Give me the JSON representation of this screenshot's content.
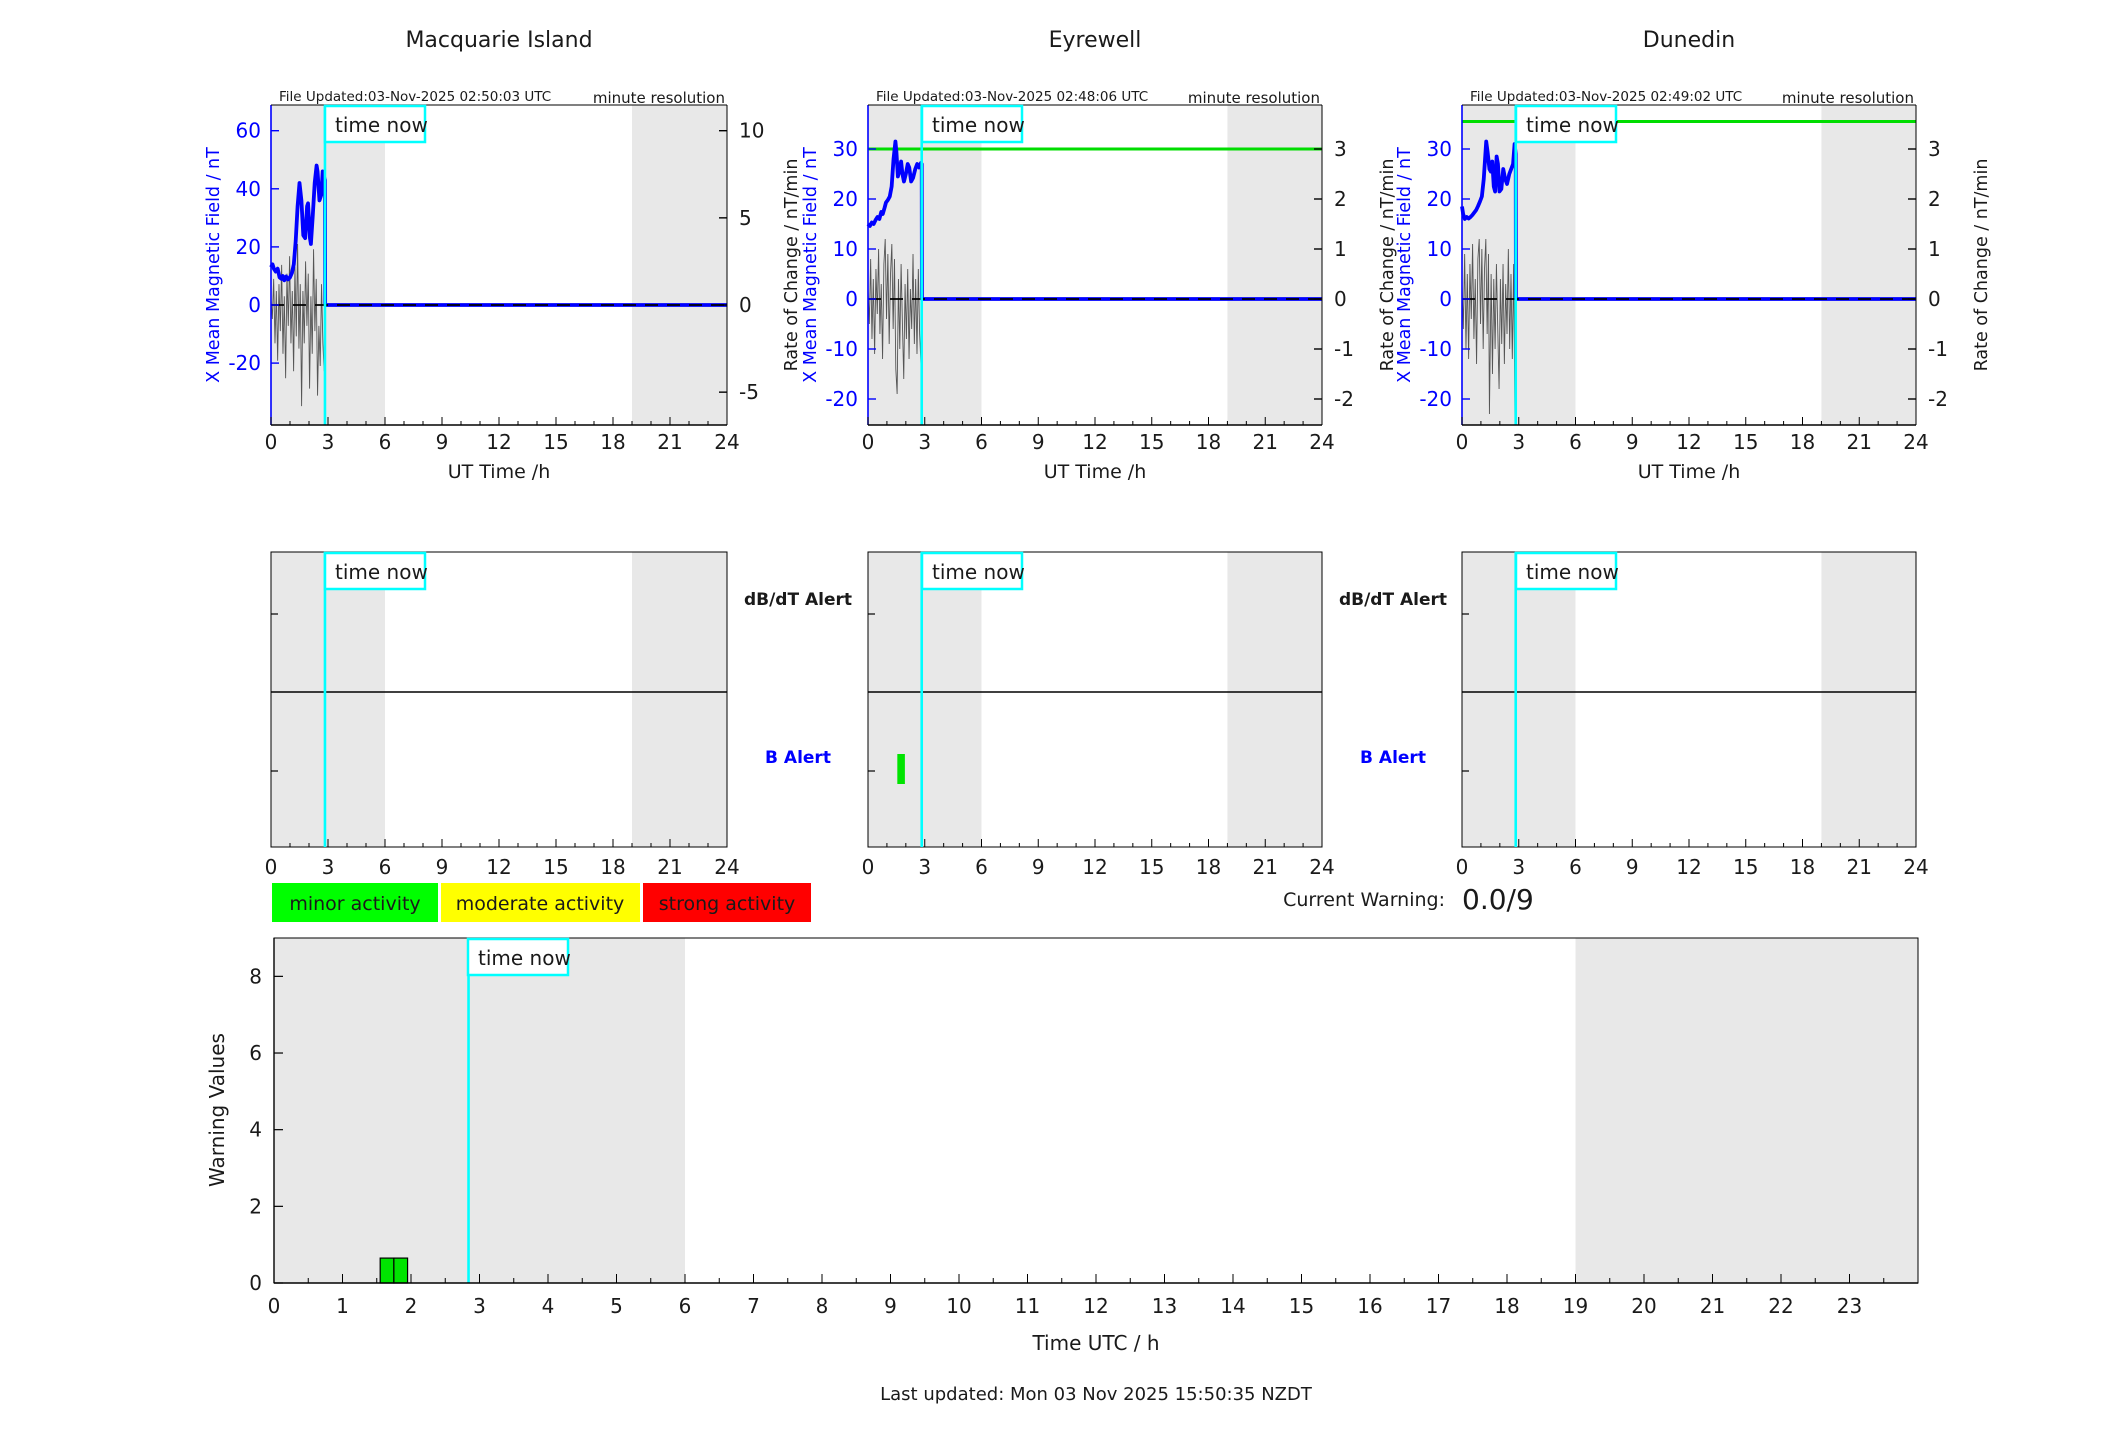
{
  "colors": {
    "field_line": "#0000ff",
    "rate_line": "#555555",
    "now_line": "#00ffff",
    "band": "#e8e8e8",
    "threshold_green": "#00dd00",
    "bar_green": "#00e400",
    "axis_blue": "#0000ff"
  },
  "time_now_hours": 2.84,
  "time_now_label": "time now",
  "chart_data": [
    {
      "type": "line",
      "id": "macquarie-island",
      "title": "Macquarie Island",
      "file_updated": "File Updated:03-Nov-2025 02:50:03 UTC",
      "resolution": "minute resolution",
      "left_ylabel": "X Mean Magnetic Field / nT",
      "right_ylabel": "Rate of Change / nT/min",
      "xlabel": "UT Time /h",
      "xticks": [
        0,
        3,
        6,
        9,
        12,
        15,
        18,
        21,
        24
      ],
      "left_ticks": [
        60,
        40,
        20,
        0,
        -20
      ],
      "right_ticks": [
        10,
        5,
        0,
        -5
      ],
      "xlim": [
        0,
        24
      ],
      "green_rate_threshold": null,
      "shaded_hours": [
        [
          0,
          6
        ],
        [
          19,
          24
        ]
      ],
      "field_series": [
        [
          0,
          13
        ],
        [
          0.08,
          14
        ],
        [
          0.15,
          12.5
        ],
        [
          0.25,
          11.5
        ],
        [
          0.35,
          12.5
        ],
        [
          0.45,
          9.5
        ],
        [
          0.55,
          9
        ],
        [
          0.62,
          10
        ],
        [
          0.7,
          8.5
        ],
        [
          0.8,
          9.8
        ],
        [
          0.9,
          8.8
        ],
        [
          1.0,
          9.5
        ],
        [
          1.1,
          11
        ],
        [
          1.2,
          14
        ],
        [
          1.3,
          22
        ],
        [
          1.4,
          34
        ],
        [
          1.5,
          42
        ],
        [
          1.6,
          36
        ],
        [
          1.7,
          24
        ],
        [
          1.8,
          23
        ],
        [
          1.9,
          34
        ],
        [
          1.95,
          35
        ],
        [
          2.05,
          23
        ],
        [
          2.1,
          21
        ],
        [
          2.2,
          31
        ],
        [
          2.3,
          42
        ],
        [
          2.4,
          48
        ],
        [
          2.45,
          46
        ],
        [
          2.55,
          36
        ],
        [
          2.65,
          38
        ],
        [
          2.72,
          46
        ],
        [
          2.8,
          44
        ],
        [
          2.84,
          43
        ],
        [
          2.85,
          0
        ],
        [
          24,
          0
        ]
      ],
      "rate_series": [
        [
          0,
          0.3
        ],
        [
          0.07,
          -0.8
        ],
        [
          0.14,
          1.5
        ],
        [
          0.21,
          -2.2
        ],
        [
          0.28,
          0.8
        ],
        [
          0.35,
          -3.2
        ],
        [
          0.42,
          1.2
        ],
        [
          0.49,
          -1.5
        ],
        [
          0.56,
          2.3
        ],
        [
          0.63,
          -2.8
        ],
        [
          0.7,
          0.5
        ],
        [
          0.77,
          -4.2
        ],
        [
          0.84,
          1.8
        ],
        [
          0.91,
          -1.2
        ],
        [
          0.98,
          2.8
        ],
        [
          1.05,
          -2.2
        ],
        [
          1.12,
          0.8
        ],
        [
          1.19,
          -3.8
        ],
        [
          1.26,
          2.2
        ],
        [
          1.33,
          -1.8
        ],
        [
          1.4,
          3.5
        ],
        [
          1.47,
          -2.5
        ],
        [
          1.54,
          1.2
        ],
        [
          1.61,
          -5.8
        ],
        [
          1.68,
          0.8
        ],
        [
          1.75,
          -2.2
        ],
        [
          1.82,
          2.5
        ],
        [
          1.89,
          -1.2
        ],
        [
          1.96,
          1.8
        ],
        [
          2.03,
          -4.8
        ],
        [
          2.1,
          0.5
        ],
        [
          2.17,
          -2.8
        ],
        [
          2.24,
          3.2
        ],
        [
          2.31,
          -1.5
        ],
        [
          2.38,
          1.5
        ],
        [
          2.45,
          -5.2
        ],
        [
          2.52,
          -1.2
        ],
        [
          2.59,
          -3.5
        ],
        [
          2.66,
          1.2
        ],
        [
          2.73,
          -2.2
        ],
        [
          2.8,
          -3.8
        ],
        [
          2.84,
          -1.5
        ]
      ],
      "alert_bars": []
    },
    {
      "type": "line",
      "id": "eyrewell",
      "title": "Eyrewell",
      "file_updated": "File Updated:03-Nov-2025 02:48:06 UTC",
      "resolution": "minute resolution",
      "left_ylabel": "X Mean Magnetic Field / nT",
      "right_ylabel": "Rate of Change / nT/min",
      "xlabel": "UT Time /h",
      "xticks": [
        0,
        3,
        6,
        9,
        12,
        15,
        18,
        21,
        24
      ],
      "left_ticks": [
        30,
        20,
        10,
        0,
        -10,
        -20
      ],
      "right_ticks": [
        3,
        2,
        1,
        0,
        -1,
        -2
      ],
      "xlim": [
        0,
        24
      ],
      "green_rate_threshold": 3.0,
      "shaded_hours": [
        [
          0,
          6
        ],
        [
          19,
          24
        ]
      ],
      "field_series": [
        [
          0,
          15
        ],
        [
          0.1,
          14.6
        ],
        [
          0.2,
          15.3
        ],
        [
          0.3,
          15
        ],
        [
          0.4,
          15.8
        ],
        [
          0.5,
          16.4
        ],
        [
          0.6,
          16
        ],
        [
          0.7,
          17.4
        ],
        [
          0.78,
          17
        ],
        [
          0.88,
          18.3
        ],
        [
          0.95,
          19.3
        ],
        [
          1.05,
          19.8
        ],
        [
          1.15,
          20.5
        ],
        [
          1.25,
          22.5
        ],
        [
          1.35,
          28
        ],
        [
          1.45,
          31.5
        ],
        [
          1.5,
          29.5
        ],
        [
          1.58,
          24.5
        ],
        [
          1.68,
          26
        ],
        [
          1.75,
          27.5
        ],
        [
          1.82,
          25
        ],
        [
          1.9,
          23.5
        ],
        [
          2.0,
          25
        ],
        [
          2.1,
          27
        ],
        [
          2.18,
          26.3
        ],
        [
          2.28,
          23.5
        ],
        [
          2.38,
          24.2
        ],
        [
          2.5,
          26
        ],
        [
          2.6,
          27
        ],
        [
          2.7,
          26.3
        ],
        [
          2.8,
          27.2
        ],
        [
          2.84,
          27
        ],
        [
          2.85,
          0
        ],
        [
          24,
          0
        ]
      ],
      "rate_series": [
        [
          0,
          0.2
        ],
        [
          0.07,
          -0.5
        ],
        [
          0.14,
          0.8
        ],
        [
          0.21,
          -0.8
        ],
        [
          0.28,
          0.4
        ],
        [
          0.35,
          -1.1
        ],
        [
          0.42,
          0.6
        ],
        [
          0.49,
          -0.3
        ],
        [
          0.56,
          1.0
        ],
        [
          0.63,
          -0.7
        ],
        [
          0.7,
          0.3
        ],
        [
          0.77,
          -1.2
        ],
        [
          0.84,
          0.7
        ],
        [
          0.91,
          1.2
        ],
        [
          0.98,
          -0.4
        ],
        [
          1.05,
          0.9
        ],
        [
          1.12,
          -0.9
        ],
        [
          1.19,
          0.5
        ],
        [
          1.26,
          1.1
        ],
        [
          1.33,
          -0.6
        ],
        [
          1.4,
          0.8
        ],
        [
          1.47,
          -1.4
        ],
        [
          1.54,
          -1.9
        ],
        [
          1.61,
          0.4
        ],
        [
          1.68,
          -1.0
        ],
        [
          1.75,
          0.7
        ],
        [
          1.82,
          -0.5
        ],
        [
          1.89,
          -1.6
        ],
        [
          1.96,
          0.3
        ],
        [
          2.03,
          -0.8
        ],
        [
          2.1,
          0.6
        ],
        [
          2.17,
          -1.2
        ],
        [
          2.24,
          0.2
        ],
        [
          2.31,
          -0.6
        ],
        [
          2.38,
          0.9
        ],
        [
          2.45,
          -0.9
        ],
        [
          2.52,
          0.4
        ],
        [
          2.59,
          -1.1
        ],
        [
          2.66,
          0.6
        ],
        [
          2.73,
          -0.7
        ],
        [
          2.8,
          -1.3
        ],
        [
          2.84,
          -0.5
        ]
      ],
      "alert_bars": [
        {
          "start": 1.55,
          "end": 1.95,
          "row": "B"
        }
      ]
    },
    {
      "type": "line",
      "id": "dunedin",
      "title": "Dunedin",
      "file_updated": "File Updated:03-Nov-2025 02:49:02 UTC",
      "resolution": "minute resolution",
      "left_ylabel": "X Mean Magnetic Field / nT",
      "right_ylabel": "Rate of Change / nT/min",
      "xlabel": "UT Time /h",
      "xticks": [
        0,
        3,
        6,
        9,
        12,
        15,
        18,
        21,
        24
      ],
      "left_ticks": [
        30,
        20,
        10,
        0,
        -10,
        -20
      ],
      "right_ticks": [
        3,
        2,
        1,
        0,
        -1,
        -2
      ],
      "xlim": [
        0,
        24
      ],
      "green_rate_threshold": 3.55,
      "shaded_hours": [
        [
          0,
          6
        ],
        [
          19,
          24
        ]
      ],
      "field_series": [
        [
          0,
          18.5
        ],
        [
          0.06,
          17
        ],
        [
          0.15,
          16
        ],
        [
          0.25,
          16.4
        ],
        [
          0.35,
          16.1
        ],
        [
          0.45,
          16.4
        ],
        [
          0.55,
          16.8
        ],
        [
          0.65,
          17.3
        ],
        [
          0.75,
          17.8
        ],
        [
          0.85,
          18.6
        ],
        [
          0.95,
          19.5
        ],
        [
          1.05,
          20.5
        ],
        [
          1.15,
          24
        ],
        [
          1.28,
          31.5
        ],
        [
          1.35,
          29.5
        ],
        [
          1.45,
          26
        ],
        [
          1.52,
          25.5
        ],
        [
          1.6,
          27.5
        ],
        [
          1.68,
          22.5
        ],
        [
          1.75,
          21.5
        ],
        [
          1.83,
          28.5
        ],
        [
          1.9,
          27
        ],
        [
          1.98,
          21.5
        ],
        [
          2.08,
          22
        ],
        [
          2.18,
          26
        ],
        [
          2.28,
          24
        ],
        [
          2.38,
          23
        ],
        [
          2.5,
          25
        ],
        [
          2.6,
          26
        ],
        [
          2.7,
          27
        ],
        [
          2.78,
          31
        ],
        [
          2.84,
          29
        ],
        [
          2.85,
          0
        ],
        [
          24,
          0
        ]
      ],
      "rate_series": [
        [
          0,
          0.3
        ],
        [
          0.07,
          -0.6
        ],
        [
          0.14,
          0.9
        ],
        [
          0.21,
          -1.0
        ],
        [
          0.28,
          0.5
        ],
        [
          0.35,
          -1.2
        ],
        [
          0.42,
          0.7
        ],
        [
          0.49,
          -0.4
        ],
        [
          0.56,
          1.1
        ],
        [
          0.63,
          -0.8
        ],
        [
          0.7,
          0.4
        ],
        [
          0.77,
          -1.3
        ],
        [
          0.84,
          0.8
        ],
        [
          0.91,
          1.2
        ],
        [
          0.98,
          -0.5
        ],
        [
          1.05,
          1.0
        ],
        [
          1.12,
          -1.0
        ],
        [
          1.19,
          0.6
        ],
        [
          1.26,
          1.2
        ],
        [
          1.33,
          -0.7
        ],
        [
          1.4,
          0.9
        ],
        [
          1.45,
          -2.3
        ],
        [
          1.54,
          0.5
        ],
        [
          1.61,
          -1.5
        ],
        [
          1.68,
          0.4
        ],
        [
          1.75,
          -1.0
        ],
        [
          1.82,
          0.7
        ],
        [
          1.89,
          -0.6
        ],
        [
          1.96,
          -1.8
        ],
        [
          2.03,
          0.4
        ],
        [
          2.1,
          -0.9
        ],
        [
          2.17,
          0.7
        ],
        [
          2.24,
          -1.3
        ],
        [
          2.31,
          0.3
        ],
        [
          2.38,
          -0.7
        ],
        [
          2.45,
          1.0
        ],
        [
          2.52,
          -1.0
        ],
        [
          2.59,
          0.5
        ],
        [
          2.66,
          -1.2
        ],
        [
          2.73,
          0.7
        ],
        [
          2.8,
          -2.45
        ],
        [
          2.84,
          -1.0
        ]
      ],
      "alert_bars": []
    },
    {
      "type": "bar",
      "id": "warning-values",
      "ylabel": "Warning Values",
      "xlabel": "Time UTC / h",
      "yticks": [
        0,
        2,
        4,
        6,
        8
      ],
      "ylim": [
        0,
        9
      ],
      "xticks": [
        0,
        1,
        2,
        3,
        4,
        5,
        6,
        7,
        8,
        9,
        10,
        11,
        12,
        13,
        14,
        15,
        16,
        17,
        18,
        19,
        20,
        21,
        22,
        23
      ],
      "xlim": [
        0,
        24
      ],
      "shaded_hours": [
        [
          0,
          6
        ],
        [
          19,
          24
        ]
      ],
      "bars": [
        {
          "start": 1.55,
          "end": 1.75,
          "value": 0.65
        },
        {
          "start": 1.75,
          "end": 1.95,
          "value": 0.65
        }
      ]
    }
  ],
  "alert_row": {
    "dbdt_label": "dB/dT Alert",
    "b_label": "B Alert",
    "xticks": [
      0,
      3,
      6,
      9,
      12,
      15,
      18,
      21,
      24
    ]
  },
  "legend": [
    {
      "label": "minor activity",
      "color": "#00ff00"
    },
    {
      "label": "moderate activity",
      "color": "#ffff00"
    },
    {
      "label": "strong activity",
      "color": "#ff0000"
    }
  ],
  "current_warning": {
    "label": "Current Warning:",
    "value": "0.0/9"
  },
  "footer": {
    "last_updated": "Last updated: Mon 03 Nov 2025 15:50:35 NZDT"
  }
}
